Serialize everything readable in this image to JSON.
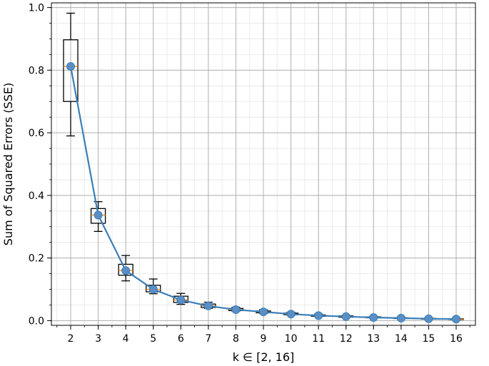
{
  "chart_data": {
    "type": "line",
    "xlabel": "k ∈ [2, 16]",
    "ylabel": "Sum of Squared Errors (SSE)",
    "xlim": [
      1.3,
      16.7
    ],
    "ylim": [
      -0.015,
      1.015
    ],
    "xticks": [
      2,
      3,
      4,
      5,
      6,
      7,
      8,
      9,
      10,
      11,
      12,
      13,
      14,
      15,
      16
    ],
    "yticks": [
      0.0,
      0.2,
      0.4,
      0.6,
      0.8,
      1.0
    ],
    "ytick_labels": [
      "0.0",
      "0.2",
      "0.4",
      "0.6",
      "0.8",
      "1.0"
    ],
    "grid": true,
    "line_color": "#3a7fb8",
    "marker_color": "#5a8fc6",
    "median_color": "#ff7f0e",
    "series": [
      {
        "x": [
          2,
          3,
          4,
          5,
          6,
          7,
          8,
          9,
          10,
          11,
          12,
          13,
          14,
          15,
          16
        ],
        "values": [
          0.812,
          0.337,
          0.16,
          0.1,
          0.066,
          0.047,
          0.035,
          0.028,
          0.021,
          0.016,
          0.013,
          0.01,
          0.008,
          0.006,
          0.005
        ]
      }
    ],
    "boxes": [
      {
        "x": 2,
        "whisker_low": 0.59,
        "q1": 0.7,
        "median": 0.812,
        "q3": 0.897,
        "whisker_high": 0.982
      },
      {
        "x": 3,
        "whisker_low": 0.285,
        "q1": 0.311,
        "median": 0.337,
        "q3": 0.358,
        "whisker_high": 0.38
      },
      {
        "x": 4,
        "whisker_low": 0.127,
        "q1": 0.145,
        "median": 0.16,
        "q3": 0.18,
        "whisker_high": 0.208
      },
      {
        "x": 5,
        "whisker_low": 0.086,
        "q1": 0.092,
        "median": 0.1,
        "q3": 0.113,
        "whisker_high": 0.133
      },
      {
        "x": 6,
        "whisker_low": 0.052,
        "q1": 0.058,
        "median": 0.066,
        "q3": 0.078,
        "whisker_high": 0.087
      },
      {
        "x": 7,
        "whisker_low": 0.039,
        "q1": 0.042,
        "median": 0.047,
        "q3": 0.053,
        "whisker_high": 0.059
      },
      {
        "x": 8,
        "whisker_low": 0.03,
        "q1": 0.032,
        "median": 0.035,
        "q3": 0.039,
        "whisker_high": 0.043
      },
      {
        "x": 9,
        "whisker_low": 0.023,
        "q1": 0.025,
        "median": 0.028,
        "q3": 0.031,
        "whisker_high": 0.035
      },
      {
        "x": 10,
        "whisker_low": 0.018,
        "q1": 0.019,
        "median": 0.021,
        "q3": 0.024,
        "whisker_high": 0.027
      },
      {
        "x": 11,
        "whisker_low": 0.013,
        "q1": 0.014,
        "median": 0.016,
        "q3": 0.018,
        "whisker_high": 0.021
      },
      {
        "x": 12,
        "whisker_low": 0.01,
        "q1": 0.011,
        "median": 0.013,
        "q3": 0.015,
        "whisker_high": 0.017
      },
      {
        "x": 13,
        "whisker_low": 0.008,
        "q1": 0.009,
        "median": 0.01,
        "q3": 0.012,
        "whisker_high": 0.014
      },
      {
        "x": 14,
        "whisker_low": 0.006,
        "q1": 0.007,
        "median": 0.008,
        "q3": 0.009,
        "whisker_high": 0.011
      },
      {
        "x": 15,
        "whisker_low": 0.004,
        "q1": 0.005,
        "median": 0.006,
        "q3": 0.007,
        "whisker_high": 0.009
      },
      {
        "x": 16,
        "whisker_low": 0.003,
        "q1": 0.004,
        "median": 0.005,
        "q3": 0.006,
        "whisker_high": 0.008
      }
    ]
  }
}
